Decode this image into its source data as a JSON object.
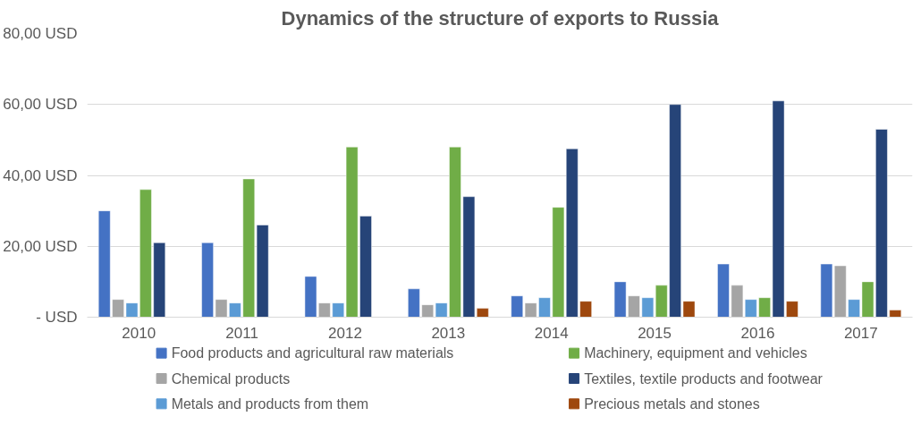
{
  "chart_data": {
    "type": "bar",
    "title": "Dynamics of the structure of exports to Russia",
    "categories": [
      "2010",
      "2011",
      "2012",
      "2013",
      "2014",
      "2015",
      "2016",
      "2017"
    ],
    "series": [
      {
        "name": "Food products and agricultural raw materials",
        "color": "#4472c4",
        "values": [
          30,
          21,
          11.5,
          8,
          6,
          10,
          15,
          15
        ]
      },
      {
        "name": "Chemical products",
        "color": "#a5a5a5",
        "values": [
          5,
          5,
          4,
          3.5,
          4,
          6,
          9,
          14.5
        ]
      },
      {
        "name": "Metals and products from them",
        "color": "#5b9bd5",
        "values": [
          4,
          4,
          4,
          4,
          5.5,
          5.5,
          5,
          5
        ]
      },
      {
        "name": "Machinery, equipment and vehicles",
        "color": "#70ad47",
        "values": [
          36,
          39,
          48,
          48,
          31,
          9,
          5.5,
          10
        ]
      },
      {
        "name": "Textiles, textile products and footwear",
        "color": "#264478",
        "values": [
          21,
          26,
          28.5,
          34,
          47.5,
          60,
          61,
          53
        ]
      },
      {
        "name": "Precious metals and stones",
        "color": "#9e480e",
        "values": [
          null,
          null,
          null,
          2.5,
          4.5,
          4.5,
          4.5,
          2
        ]
      }
    ],
    "ylim": [
      0,
      80
    ],
    "yticks": [
      {
        "value": 0,
        "label": "- USD"
      },
      {
        "value": 20,
        "label": "20,00 USD"
      },
      {
        "value": 40,
        "label": "40,00 USD"
      },
      {
        "value": 60,
        "label": "60,00 USD"
      },
      {
        "value": 80,
        "label": "80,00 USD"
      }
    ],
    "grid": "y",
    "legend": "bottom"
  }
}
